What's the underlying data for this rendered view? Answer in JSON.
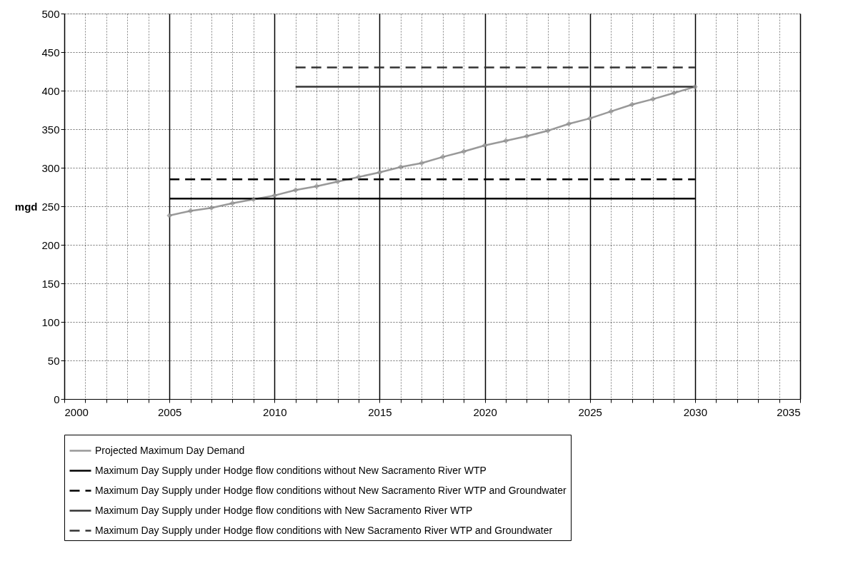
{
  "chart_data": {
    "type": "line",
    "ylabel": "mgd",
    "xlim": [
      2000,
      2035
    ],
    "ylim": [
      0,
      500
    ],
    "xticks": [
      2000,
      {
        "value": 2001,
        "label": null
      },
      {
        "value": 2002,
        "label": null
      },
      {
        "value": 2003,
        "label": null
      },
      {
        "value": 2004,
        "label": null
      },
      2005,
      {
        "value": 2006,
        "label": null
      },
      {
        "value": 2007,
        "label": null
      },
      {
        "value": 2008,
        "label": null
      },
      {
        "value": 2009,
        "label": null
      },
      2010,
      {
        "value": 2011,
        "label": null
      },
      {
        "value": 2012,
        "label": null
      },
      {
        "value": 2013,
        "label": null
      },
      {
        "value": 2014,
        "label": null
      },
      2015,
      {
        "value": 2016,
        "label": null
      },
      {
        "value": 2017,
        "label": null
      },
      {
        "value": 2018,
        "label": null
      },
      {
        "value": 2019,
        "label": null
      },
      2020,
      {
        "value": 2021,
        "label": null
      },
      {
        "value": 2022,
        "label": null
      },
      {
        "value": 2023,
        "label": null
      },
      {
        "value": 2024,
        "label": null
      },
      2025,
      {
        "value": 2026,
        "label": null
      },
      {
        "value": 2027,
        "label": null
      },
      {
        "value": 2028,
        "label": null
      },
      {
        "value": 2029,
        "label": null
      },
      2030,
      {
        "value": 2031,
        "label": null
      },
      {
        "value": 2032,
        "label": null
      },
      {
        "value": 2033,
        "label": null
      },
      {
        "value": 2034,
        "label": null
      },
      2035
    ],
    "yticks": [
      0,
      50,
      100,
      150,
      200,
      250,
      300,
      350,
      400,
      450,
      500
    ],
    "grid": true,
    "legend": "bottom",
    "series": [
      {
        "name": "Projected Maximum Day Demand",
        "color": "#999999",
        "marker": "diamond",
        "line_style": "solid",
        "x": [
          2005,
          2006,
          2007,
          2008,
          2009,
          2010,
          2011,
          2012,
          2013,
          2014,
          2015,
          2016,
          2017,
          2018,
          2019,
          2020,
          2021,
          2022,
          2023,
          2024,
          2025,
          2026,
          2027,
          2028,
          2029,
          2030
        ],
        "values": [
          238,
          244,
          248,
          254,
          259,
          264,
          271,
          276,
          282,
          288,
          294,
          301,
          306,
          314,
          321,
          329,
          335,
          341,
          348,
          357,
          364,
          373,
          382,
          389,
          397,
          405
        ]
      },
      {
        "name": "Maximum Day Supply under Hodge flow conditions without New Sacramento River WTP",
        "color": "#000000",
        "marker": "none",
        "line_style": "solid",
        "x": [
          2005,
          2030
        ],
        "values": [
          260,
          260
        ]
      },
      {
        "name": "Maximum Day Supply under Hodge flow conditions without New Sacramento River WTP and Groundwater",
        "color": "#000000",
        "marker": "none",
        "line_style": "dashed",
        "x": [
          2005,
          2030
        ],
        "values": [
          285,
          285
        ]
      },
      {
        "name": "Maximum Day Supply under Hodge flow conditions with New Sacramento River WTP",
        "color": "#333333",
        "marker": "none",
        "line_style": "solid",
        "x": [
          2011,
          2030
        ],
        "values": [
          405,
          405
        ]
      },
      {
        "name": "Maximum Day Supply under Hodge flow conditions with New Sacramento River WTP and Groundwater",
        "color": "#333333",
        "marker": "none",
        "line_style": "dashed",
        "x": [
          2011,
          2030
        ],
        "values": [
          430,
          430
        ]
      }
    ]
  }
}
